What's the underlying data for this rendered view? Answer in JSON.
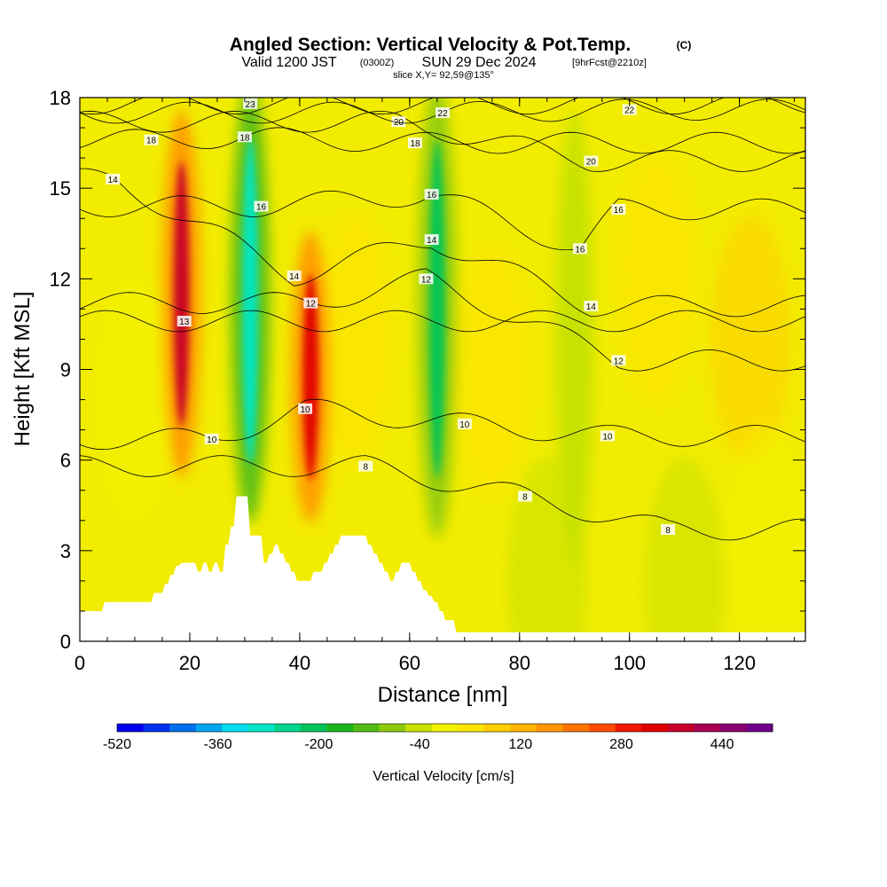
{
  "title": {
    "main": "Angled Section: Vertical Velocity & Pot.Temp.",
    "main_suffix": "(C)",
    "valid": "Valid 1200 JST",
    "valid_z": "(0300Z)",
    "valid_date": "SUN 29 Dec 2024",
    "fcst": "[9hrFcst@2210z]",
    "slice": "slice X,Y= 92,59@135°"
  },
  "chart_data": {
    "type": "heatmap",
    "xlabel": "Distance [nm]",
    "ylabel": "Height [Kft MSL]",
    "xlim": [
      0,
      132
    ],
    "ylim": [
      0,
      18
    ],
    "x_ticks": [
      0,
      20,
      40,
      60,
      80,
      100,
      120
    ],
    "y_ticks": [
      0,
      3,
      6,
      9,
      12,
      15,
      18
    ],
    "colorbar": {
      "label": "Vertical Velocity [cm/s]",
      "min": -520,
      "max": 520,
      "tick_labels": [
        -520,
        -360,
        -200,
        -40,
        120,
        280,
        440
      ],
      "colors": [
        "#0000ee",
        "#0030ee",
        "#0070ee",
        "#00a6ee",
        "#00ddee",
        "#00e6c6",
        "#00d58a",
        "#00c45a",
        "#1cb41c",
        "#52bc14",
        "#8ccb0c",
        "#c6e200",
        "#f2f200",
        "#ffe400",
        "#ffce00",
        "#ffb400",
        "#ff9600",
        "#ff7400",
        "#ff4c00",
        "#f01800",
        "#e00000",
        "#c80028",
        "#a80050",
        "#8c006e",
        "#6e008c"
      ]
    },
    "theta_contours": [
      {
        "level": 8,
        "labels": [
          [
            52,
            5.8
          ],
          [
            81,
            4.8
          ],
          [
            107,
            3.7
          ]
        ]
      },
      {
        "level": 10,
        "labels": [
          [
            24,
            6.7
          ],
          [
            41,
            7.7
          ],
          [
            70,
            7.2
          ],
          [
            96,
            6.8
          ]
        ]
      },
      {
        "level": 12,
        "labels": [
          [
            42,
            11.2
          ],
          [
            63,
            12.0
          ],
          [
            98,
            9.3
          ]
        ]
      },
      {
        "level": 13,
        "labels": [
          [
            19,
            10.6
          ]
        ]
      },
      {
        "level": 14,
        "labels": [
          [
            6,
            15.3
          ],
          [
            39,
            12.1
          ],
          [
            64,
            13.3
          ],
          [
            93,
            11.1
          ]
        ]
      },
      {
        "level": 16,
        "labels": [
          [
            33,
            14.4
          ],
          [
            64,
            14.8
          ],
          [
            91,
            13.0
          ],
          [
            98,
            14.3
          ]
        ]
      },
      {
        "level": 18,
        "labels": [
          [
            13,
            16.6
          ],
          [
            30,
            16.7
          ],
          [
            61,
            16.5
          ]
        ]
      },
      {
        "level": 20,
        "labels": [
          [
            58,
            17.2
          ],
          [
            93,
            15.9
          ]
        ]
      },
      {
        "level": 22,
        "labels": [
          [
            66,
            17.5
          ],
          [
            100,
            17.6
          ]
        ]
      },
      {
        "level": 23,
        "labels": [
          [
            31,
            17.8
          ]
        ]
      }
    ],
    "velocity_features": [
      {
        "kind": "updraft",
        "x_center": 18.5,
        "z_range": [
          6,
          17
        ],
        "peak": 380
      },
      {
        "kind": "downdraft",
        "x_center": 31,
        "z_range": [
          4.5,
          18
        ],
        "peak": -300
      },
      {
        "kind": "updraft",
        "x_center": 42,
        "z_range": [
          4.5,
          13
        ],
        "peak": 330
      },
      {
        "kind": "downdraft",
        "x_center": 65,
        "z_range": [
          4,
          18
        ],
        "peak": -210
      },
      {
        "kind": "downdraft",
        "x_center": 90,
        "z_range": [
          3,
          17
        ],
        "peak": -60
      }
    ],
    "terrain_kft": [
      [
        0,
        1
      ],
      [
        4,
        1
      ],
      [
        4.5,
        1.3
      ],
      [
        13,
        1.3
      ],
      [
        13.5,
        1.6
      ],
      [
        15,
        1.6
      ],
      [
        15.5,
        1.9
      ],
      [
        16,
        1.9
      ],
      [
        16.5,
        2.2
      ],
      [
        17,
        2.2
      ],
      [
        17.5,
        2.5
      ],
      [
        18,
        2.5
      ],
      [
        18.5,
        2.6
      ],
      [
        21,
        2.6
      ],
      [
        21.5,
        2.3
      ],
      [
        22,
        2.3
      ],
      [
        22.5,
        2.6
      ],
      [
        23,
        2.6
      ],
      [
        23.5,
        2.3
      ],
      [
        24,
        2.3
      ],
      [
        24.5,
        2.6
      ],
      [
        25,
        2.6
      ],
      [
        25.5,
        2.3
      ],
      [
        26,
        2.3
      ],
      [
        26.5,
        3.2
      ],
      [
        27,
        3.2
      ],
      [
        27.5,
        3.8
      ],
      [
        28,
        3.8
      ],
      [
        28.5,
        4.8
      ],
      [
        30.5,
        4.8
      ],
      [
        31,
        3.5
      ],
      [
        33,
        3.5
      ],
      [
        33.5,
        2.6
      ],
      [
        34,
        2.6
      ],
      [
        34.5,
        2.9
      ],
      [
        35,
        2.9
      ],
      [
        35.5,
        3.2
      ],
      [
        36,
        3.2
      ],
      [
        36.5,
        2.9
      ],
      [
        37,
        2.9
      ],
      [
        37.5,
        2.6
      ],
      [
        38,
        2.6
      ],
      [
        38.5,
        2.3
      ],
      [
        39,
        2.3
      ],
      [
        39.5,
        2.0
      ],
      [
        42,
        2.0
      ],
      [
        42.5,
        2.3
      ],
      [
        44,
        2.3
      ],
      [
        44.5,
        2.6
      ],
      [
        45,
        2.6
      ],
      [
        45.5,
        2.9
      ],
      [
        46,
        2.9
      ],
      [
        46.5,
        3.2
      ],
      [
        47,
        3.2
      ],
      [
        47.5,
        3.5
      ],
      [
        52,
        3.5
      ],
      [
        52.5,
        3.2
      ],
      [
        53,
        3.2
      ],
      [
        53.5,
        2.9
      ],
      [
        54,
        2.9
      ],
      [
        54.5,
        2.6
      ],
      [
        55,
        2.6
      ],
      [
        55.5,
        2.3
      ],
      [
        56,
        2.3
      ],
      [
        56.5,
        2.0
      ],
      [
        57,
        2.0
      ],
      [
        57.5,
        2.3
      ],
      [
        58,
        2.3
      ],
      [
        58.5,
        2.6
      ],
      [
        60,
        2.6
      ],
      [
        60.5,
        2.3
      ],
      [
        61,
        2.3
      ],
      [
        61.5,
        2.0
      ],
      [
        62,
        2.0
      ],
      [
        62.5,
        1.7
      ],
      [
        63,
        1.7
      ],
      [
        63.5,
        1.5
      ],
      [
        64,
        1.5
      ],
      [
        64.5,
        1.3
      ],
      [
        65,
        1.3
      ],
      [
        65.5,
        1.0
      ],
      [
        66,
        1.0
      ],
      [
        66.5,
        0.7
      ],
      [
        68,
        0.7
      ],
      [
        68.5,
        0.3
      ],
      [
        132,
        0.3
      ]
    ]
  }
}
